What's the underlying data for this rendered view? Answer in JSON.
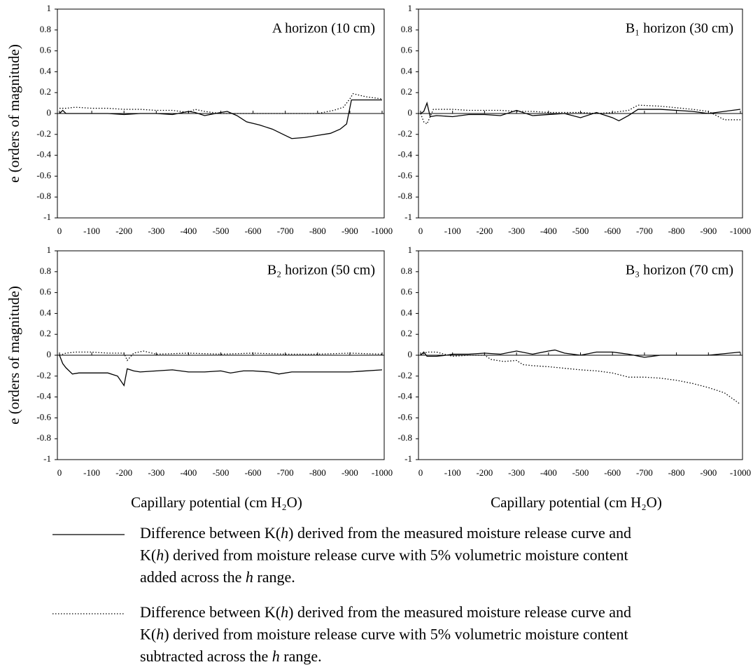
{
  "chart_data": [
    {
      "type": "line",
      "title": "A horizon (10 cm)",
      "ylabel": "e (orders of magnitude)",
      "xlim": [
        0,
        -1000
      ],
      "xticks": [
        0,
        -100,
        -200,
        -300,
        -400,
        -500,
        -600,
        -700,
        -800,
        -900,
        -1000
      ],
      "ylim": [
        -1,
        1
      ],
      "yticks": [
        1,
        0.8,
        0.6,
        0.4,
        0.2,
        0,
        -0.2,
        -0.4,
        -0.6,
        -0.8,
        -1
      ],
      "series": [
        {
          "color": "#000000",
          "dash": "solid",
          "x": [
            0,
            -10,
            -20,
            -50,
            -100,
            -150,
            -200,
            -250,
            -300,
            -350,
            -400,
            -420,
            -450,
            -500,
            -520,
            -550,
            -580,
            -620,
            -660,
            -700,
            -720,
            -760,
            -800,
            -840,
            -870,
            -890,
            -905,
            -950,
            -1000
          ],
          "values": [
            0,
            0.03,
            0,
            0,
            0,
            0,
            -0.01,
            0,
            0,
            -0.01,
            0.02,
            0.01,
            -0.02,
            0.01,
            0.02,
            -0.02,
            -0.08,
            -0.11,
            -0.15,
            -0.21,
            -0.24,
            -0.23,
            -0.21,
            -0.19,
            -0.15,
            -0.1,
            0.13,
            0.13,
            0.13
          ]
        },
        {
          "color": "#000000",
          "dash": "dotted",
          "x": [
            0,
            -20,
            -50,
            -100,
            -150,
            -200,
            -250,
            -300,
            -350,
            -400,
            -420,
            -450,
            -500,
            -550,
            -600,
            -700,
            -800,
            -850,
            -880,
            -900,
            -910,
            -950,
            -1000
          ],
          "values": [
            0.05,
            0.05,
            0.06,
            0.05,
            0.05,
            0.04,
            0.04,
            0.03,
            0.03,
            0.01,
            0.04,
            0.02,
            0,
            0,
            0,
            0,
            0,
            0.03,
            0.06,
            0.14,
            0.19,
            0.16,
            0.14
          ]
        }
      ]
    },
    {
      "type": "line",
      "title": "B₁ horizon (30 cm)",
      "xlim": [
        0,
        -1000
      ],
      "xticks": [
        0,
        -100,
        -200,
        -300,
        -400,
        -500,
        -600,
        -700,
        -800,
        -900,
        -1000
      ],
      "ylim": [
        -1,
        1
      ],
      "yticks": [
        1,
        0.8,
        0.6,
        0.4,
        0.2,
        0,
        -0.2,
        -0.4,
        -0.6,
        -0.8,
        -1
      ],
      "series": [
        {
          "color": "#000000",
          "dash": "solid",
          "x": [
            0,
            -10,
            -20,
            -30,
            -50,
            -100,
            -150,
            -200,
            -250,
            -300,
            -350,
            -400,
            -450,
            -500,
            -550,
            -600,
            -620,
            -650,
            -680,
            -750,
            -850,
            -900,
            -1000
          ],
          "values": [
            0,
            0.02,
            0.1,
            -0.03,
            -0.02,
            -0.03,
            -0.01,
            -0.01,
            -0.02,
            0.03,
            -0.02,
            -0.01,
            0,
            -0.04,
            0.01,
            -0.04,
            -0.07,
            -0.02,
            0.04,
            0.04,
            0.02,
            0,
            0.04
          ]
        },
        {
          "color": "#000000",
          "dash": "dotted",
          "x": [
            0,
            -10,
            -20,
            -40,
            -100,
            -150,
            -200,
            -250,
            -300,
            -350,
            -400,
            -450,
            -500,
            -550,
            -600,
            -650,
            -680,
            -750,
            -850,
            -900,
            -950,
            -1000
          ],
          "values": [
            0,
            -0.08,
            -0.1,
            0.04,
            0.04,
            0.03,
            0.03,
            0.03,
            0.02,
            0.02,
            0.01,
            0.01,
            0.01,
            0,
            0.01,
            0.03,
            0.08,
            0.07,
            0.04,
            0.02,
            -0.06,
            -0.06
          ]
        }
      ]
    },
    {
      "type": "line",
      "title": "B₂ horizon (50 cm)",
      "ylabel": "e (orders of magnitude)",
      "xlabel": "Capillary potential (cm H₂O)",
      "xlim": [
        0,
        -1000
      ],
      "xticks": [
        0,
        -100,
        -200,
        -300,
        -400,
        -500,
        -600,
        -700,
        -800,
        -900,
        -1000
      ],
      "ylim": [
        -1,
        1
      ],
      "yticks": [
        1,
        0.8,
        0.6,
        0.4,
        0.2,
        0,
        -0.2,
        -0.4,
        -0.6,
        -0.8,
        -1
      ],
      "series": [
        {
          "color": "#000000",
          "dash": "solid",
          "x": [
            0,
            -10,
            -20,
            -40,
            -60,
            -100,
            -150,
            -180,
            -200,
            -210,
            -230,
            -250,
            -300,
            -350,
            -400,
            -450,
            -500,
            -530,
            -570,
            -600,
            -650,
            -680,
            -720,
            -800,
            -900,
            -1000
          ],
          "values": [
            0,
            -0.08,
            -0.12,
            -0.18,
            -0.17,
            -0.17,
            -0.17,
            -0.2,
            -0.29,
            -0.13,
            -0.15,
            -0.16,
            -0.15,
            -0.14,
            -0.16,
            -0.16,
            -0.15,
            -0.17,
            -0.15,
            -0.15,
            -0.16,
            -0.18,
            -0.16,
            -0.16,
            -0.16,
            -0.14
          ]
        },
        {
          "color": "#000000",
          "dash": "dotted",
          "x": [
            0,
            -20,
            -50,
            -100,
            -150,
            -200,
            -210,
            -230,
            -260,
            -300,
            -400,
            -500,
            -600,
            -700,
            -800,
            -900,
            -1000
          ],
          "values": [
            0,
            0.02,
            0.03,
            0.03,
            0.02,
            0.02,
            -0.05,
            0.02,
            0.04,
            0.01,
            0.02,
            0.01,
            0.02,
            0.01,
            0.01,
            0.02,
            0.01
          ]
        }
      ]
    },
    {
      "type": "line",
      "title": "B₃ horizon (70 cm)",
      "xlabel": "Capillary potential (cm H₂O)",
      "xlim": [
        0,
        -1000
      ],
      "xticks": [
        0,
        -100,
        -200,
        -300,
        -400,
        -500,
        -600,
        -700,
        -800,
        -900,
        -1000
      ],
      "ylim": [
        -1,
        1
      ],
      "yticks": [
        1,
        0.8,
        0.6,
        0.4,
        0.2,
        0,
        -0.2,
        -0.4,
        -0.6,
        -0.8,
        -1
      ],
      "series": [
        {
          "color": "#000000",
          "dash": "solid",
          "x": [
            0,
            -10,
            -20,
            -50,
            -80,
            -100,
            -150,
            -200,
            -250,
            -300,
            -350,
            -400,
            -420,
            -450,
            -500,
            -550,
            -600,
            -650,
            -700,
            -750,
            -800,
            -900,
            -1000
          ],
          "values": [
            0,
            0.03,
            -0.01,
            -0.01,
            0,
            0.01,
            0.01,
            0.02,
            0.01,
            0.04,
            0.01,
            0.04,
            0.05,
            0.02,
            0,
            0.03,
            0.03,
            0.01,
            -0.02,
            0,
            0,
            0,
            0.03
          ]
        },
        {
          "color": "#000000",
          "dash": "dotted",
          "x": [
            0,
            -20,
            -50,
            -100,
            -150,
            -200,
            -220,
            -260,
            -300,
            -320,
            -350,
            -400,
            -500,
            -550,
            -600,
            -650,
            -700,
            -750,
            -800,
            -850,
            -900,
            -950,
            -1000
          ],
          "values": [
            0,
            0.03,
            0.03,
            -0.01,
            0,
            0,
            -0.04,
            -0.06,
            -0.05,
            -0.09,
            -0.1,
            -0.11,
            -0.14,
            -0.15,
            -0.17,
            -0.21,
            -0.21,
            -0.22,
            -0.24,
            -0.27,
            -0.31,
            -0.36,
            -0.47
          ]
        }
      ]
    }
  ],
  "legend": [
    {
      "dash": "solid",
      "lines": [
        [
          "Difference between K(",
          "h",
          ") derived from the measured moisture release curve and"
        ],
        [
          "K(",
          "h",
          ") derived from moisture release curve with 5% volumetric moisture content"
        ],
        [
          "added across the ",
          "h",
          " range."
        ]
      ]
    },
    {
      "dash": "dotted",
      "lines": [
        [
          "Difference between K(",
          "h",
          ") derived from the measured moisture release curve and"
        ],
        [
          "K(",
          "h",
          ") derived from moisture release curve with 5% volumetric moisture content"
        ],
        [
          "subtracted across the ",
          "h",
          " range."
        ]
      ]
    }
  ]
}
